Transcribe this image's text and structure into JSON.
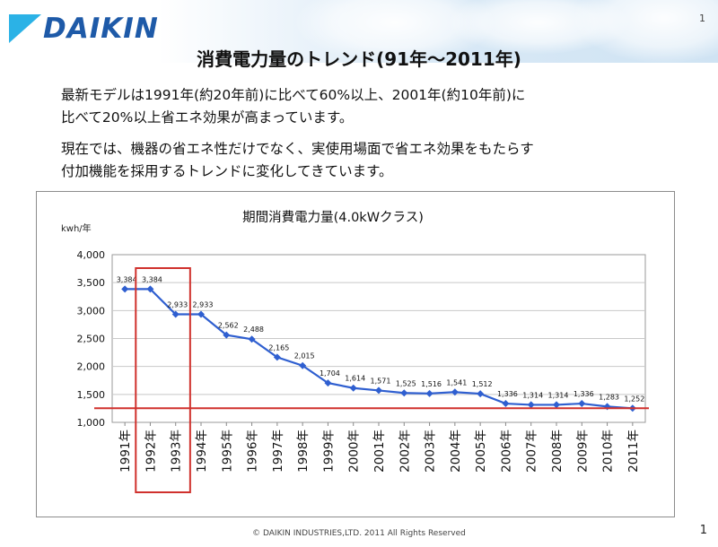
{
  "header": {
    "logo_text": "DAIKIN",
    "page_number_top": "1",
    "title": "消費電力量のトレンド(91年～2011年)"
  },
  "body": {
    "paragraph1_line1": "最新モデルは1991年(約20年前)に比べて60%以上、2001年(約10年前)に",
    "paragraph1_line2": "比べて20%以上省エネ効果が高まっています。",
    "paragraph2_line1": "現在では、機器の省エネ性だけでなく、実使用場面で省エネ効果をもたらす",
    "paragraph2_line2": "付加機能を採用するトレンドに変化してきています。"
  },
  "chart_data": {
    "type": "line",
    "title": "期間消費電力量(4.0kWクラス)",
    "ylabel": "kwh/年",
    "xlabel": "",
    "ylim": [
      1000,
      4000
    ],
    "yticks": [
      "1,000",
      "1,500",
      "2,000",
      "2,500",
      "3,000",
      "3,500",
      "4,000"
    ],
    "categories": [
      "1991年",
      "1992年",
      "1993年",
      "1994年",
      "1995年",
      "1996年",
      "1997年",
      "1998年",
      "1999年",
      "2000年",
      "2001年",
      "2002年",
      "2003年",
      "2004年",
      "2005年",
      "2006年",
      "2007年",
      "2008年",
      "2009年",
      "2010年",
      "2011年"
    ],
    "values": [
      3384,
      3384,
      2933,
      2933,
      2562,
      2488,
      2165,
      2015,
      1704,
      1614,
      1571,
      1525,
      1516,
      1541,
      1512,
      1336,
      1314,
      1314,
      1336,
      1283,
      1252
    ],
    "labels": [
      "3,384",
      "3,384",
      "2,933",
      "2,933",
      "2,562",
      "2,488",
      "2,165",
      "2,015",
      "1,704",
      "1,614",
      "1,571",
      "1,525",
      "1,516",
      "1,541",
      "1,512",
      "1,336",
      "1,314",
      "1,314",
      "1,336",
      "1,283",
      "1,252"
    ],
    "highlight_categories": [
      "1992年",
      "1993年"
    ],
    "reference_value": 1252,
    "grid": true,
    "colors": {
      "line": "#2f5fd0",
      "highlight": "#d0312d",
      "reference": "#d0312d",
      "grid": "#c8c8c8"
    }
  },
  "footer": {
    "copyright": "© DAIKIN INDUSTRIES,LTD.   2011  All Rights Reserved",
    "page_number": "1"
  }
}
